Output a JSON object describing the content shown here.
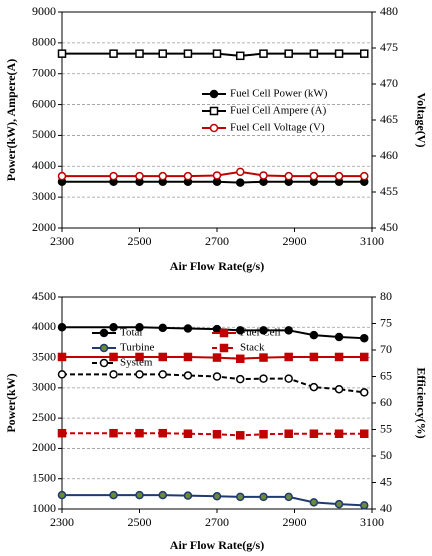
{
  "chart_data": [
    {
      "type": "line",
      "xlabel": "Air Flow Rate(g/s)",
      "ylabel": "Power(kW), Ampere(A)",
      "y2label": "Voltage(V)",
      "x": [
        2300,
        2433,
        2500,
        2560,
        2625,
        2700,
        2760,
        2820,
        2885,
        2950,
        3015,
        3080
      ],
      "xlim": [
        2300,
        3100
      ],
      "xticks": [
        2300,
        2500,
        2700,
        2900,
        3100
      ],
      "ylim": [
        2000,
        9000
      ],
      "yticks": [
        2000,
        3000,
        4000,
        5000,
        6000,
        7000,
        8000,
        9000
      ],
      "y2lim": [
        450,
        480
      ],
      "y2ticks": [
        450,
        455,
        460,
        465,
        470,
        475,
        480
      ],
      "grid": true,
      "legend": "center-right",
      "legend_columns": 1,
      "series": [
        {
          "name": "Fuel Cell Power (kW)",
          "color": "#000000",
          "marker": "circle",
          "marker_fill": "#000000",
          "dashed": false,
          "values": [
            3500,
            3500,
            3500,
            3500,
            3500,
            3500,
            3470,
            3500,
            3500,
            3500,
            3500,
            3500
          ]
        },
        {
          "name": "Fuel Cell Ampere (A)",
          "color": "#000000",
          "marker": "square",
          "marker_fill": "#ffffff",
          "dashed": false,
          "values": [
            7650,
            7650,
            7650,
            7650,
            7650,
            7650,
            7580,
            7650,
            7650,
            7650,
            7650,
            7650
          ]
        },
        {
          "name": "Fuel Cell Voltage (V)",
          "color": "#c00000",
          "marker": "circle",
          "marker_fill": "#ffffff",
          "dashed": false,
          "axis": "y2",
          "values": [
            457.2,
            457.2,
            457.2,
            457.2,
            457.2,
            457.3,
            457.8,
            457.3,
            457.2,
            457.2,
            457.2,
            457.2
          ]
        }
      ]
    },
    {
      "type": "line",
      "xlabel": "Air Flow Rate(g/s)",
      "ylabel": "Power(kW)",
      "y2label": "Efficiency(%)",
      "x": [
        2300,
        2433,
        2500,
        2560,
        2625,
        2700,
        2760,
        2820,
        2885,
        2950,
        3015,
        3080
      ],
      "xlim": [
        2300,
        3100
      ],
      "xticks": [
        2300,
        2500,
        2700,
        2900,
        3100
      ],
      "ylim": [
        1000,
        4500
      ],
      "yticks": [
        1000,
        1500,
        2000,
        2500,
        3000,
        3500,
        4000,
        4500
      ],
      "y2lim": [
        40,
        80
      ],
      "y2ticks": [
        40,
        45,
        50,
        55,
        60,
        65,
        70,
        75,
        80
      ],
      "grid": true,
      "legend": "upper-center",
      "legend_columns": 2,
      "series": [
        {
          "name": "Total",
          "color": "#000000",
          "marker": "circle",
          "marker_fill": "#000000",
          "dashed": false,
          "values": [
            4000,
            4000,
            4000,
            3990,
            3980,
            3970,
            3950,
            3950,
            3950,
            3870,
            3840,
            3820
          ]
        },
        {
          "name": "Fuel Cell",
          "color": "#c00000",
          "marker": "square",
          "marker_fill": "#c00000",
          "dashed": false,
          "values": [
            3510,
            3510,
            3510,
            3510,
            3510,
            3500,
            3480,
            3500,
            3510,
            3510,
            3510,
            3510
          ]
        },
        {
          "name": "Turbine",
          "color": "#1f3a70",
          "marker": "circle",
          "marker_fill": "#6a8a3a",
          "dashed": false,
          "values": [
            1230,
            1230,
            1230,
            1230,
            1220,
            1210,
            1200,
            1200,
            1200,
            1110,
            1080,
            1060
          ]
        },
        {
          "name": "Stack",
          "color": "#c00000",
          "marker": "square",
          "marker_fill": "#c00000",
          "dashed": true,
          "axis": "y2",
          "values": [
            54.3,
            54.3,
            54.3,
            54.3,
            54.2,
            54.1,
            53.9,
            54.1,
            54.2,
            54.2,
            54.2,
            54.2
          ]
        },
        {
          "name": "System",
          "color": "#000000",
          "marker": "circle",
          "marker_fill": "#ffffff",
          "dashed": true,
          "axis": "y2",
          "values": [
            65.4,
            65.4,
            65.4,
            65.4,
            65.2,
            65.0,
            64.5,
            64.6,
            64.6,
            63.0,
            62.6,
            62.0
          ]
        }
      ]
    }
  ]
}
